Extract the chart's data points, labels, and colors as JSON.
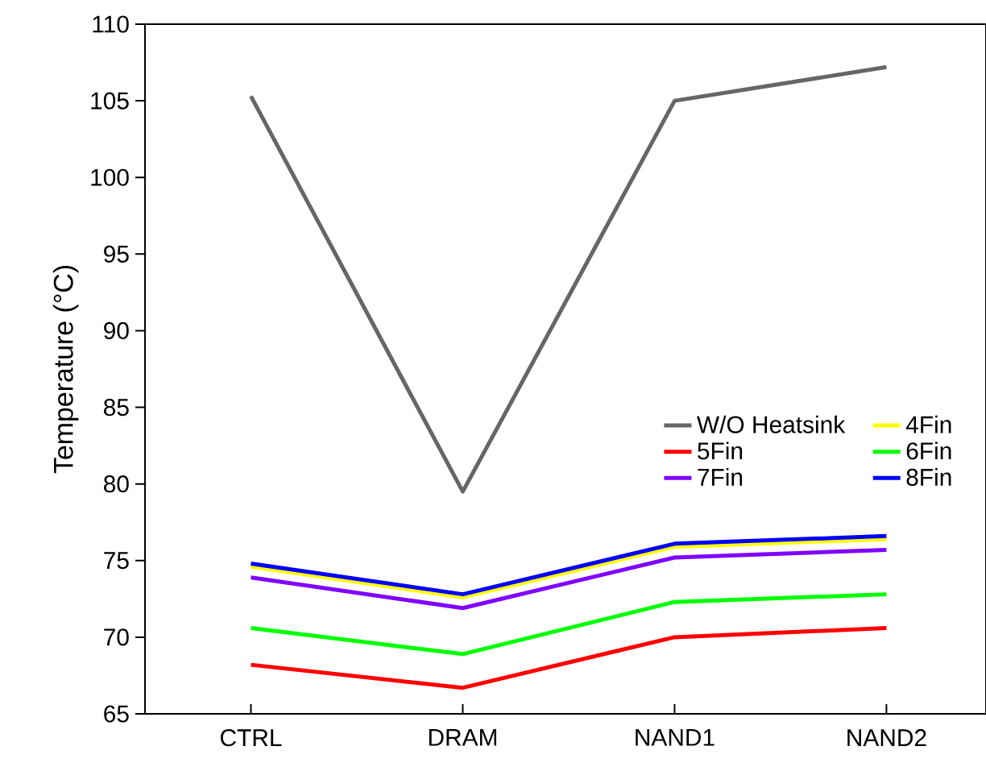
{
  "chart_data": {
    "type": "line",
    "ylabel": "Temperature (°C)",
    "categories": [
      "CTRL",
      "DRAM",
      "NAND1",
      "NAND2"
    ],
    "series": [
      {
        "name": "W/O Heatsink",
        "color": "#666666",
        "values": [
          105.3,
          79.5,
          105.0,
          107.2
        ]
      },
      {
        "name": "4Fin",
        "color": "#ffff00",
        "values": [
          74.6,
          72.6,
          75.9,
          76.4
        ]
      },
      {
        "name": "5Fin",
        "color": "#ff0000",
        "values": [
          68.2,
          66.7,
          70.0,
          70.6
        ]
      },
      {
        "name": "6Fin",
        "color": "#00ff00",
        "values": [
          70.6,
          68.9,
          72.3,
          72.8
        ]
      },
      {
        "name": "7Fin",
        "color": "#8000ff",
        "values": [
          73.9,
          71.9,
          75.2,
          75.7
        ]
      },
      {
        "name": "8Fin",
        "color": "#0000ff",
        "values": [
          74.8,
          72.8,
          76.1,
          76.6
        ]
      }
    ],
    "ylim": [
      65,
      110
    ],
    "yticks": [
      65,
      70,
      75,
      80,
      85,
      90,
      95,
      100,
      105,
      110
    ],
    "grid": false,
    "legend": "right",
    "marker": "none",
    "line_style": "solid"
  }
}
